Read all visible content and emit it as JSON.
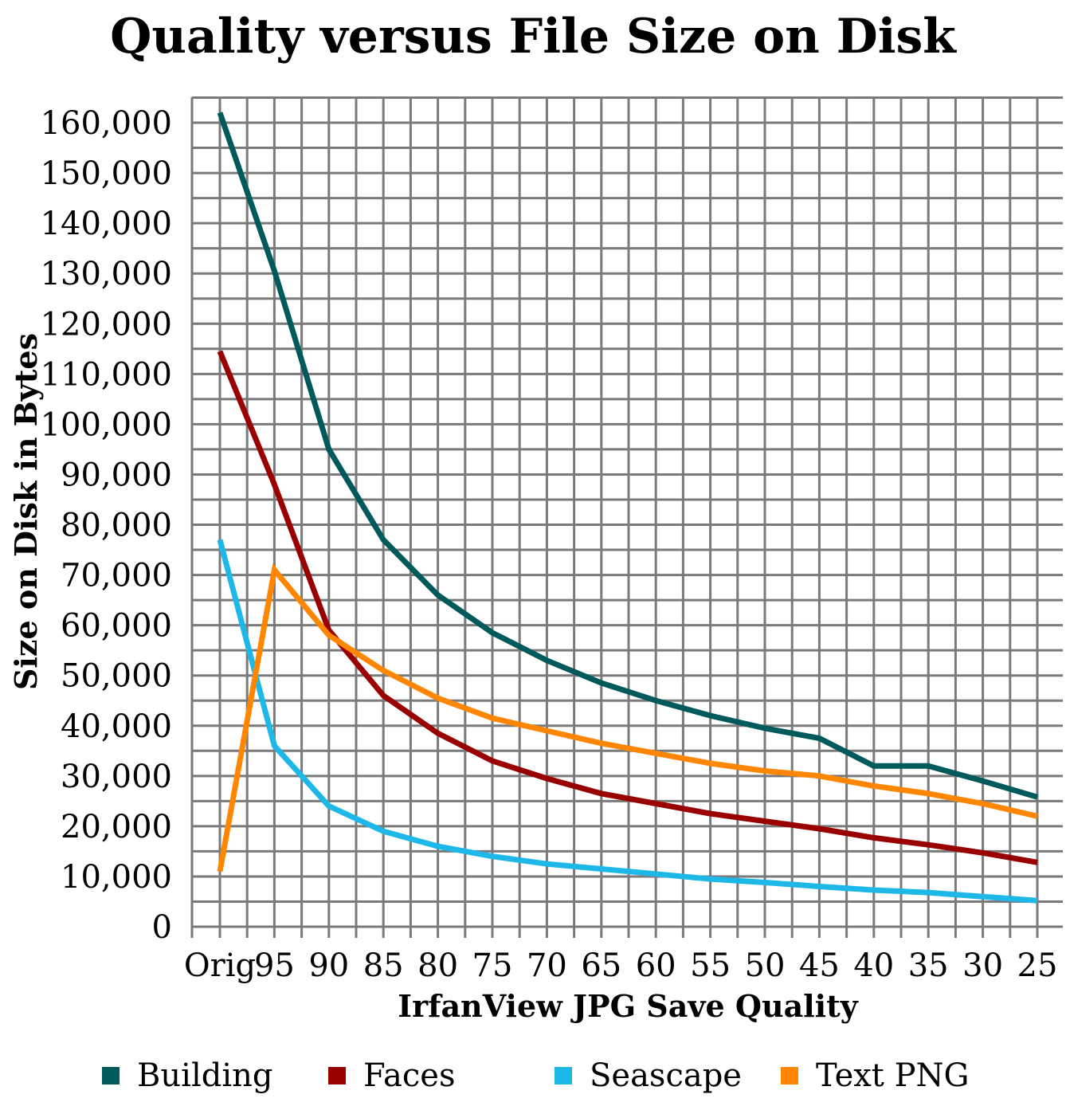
{
  "chart_data": {
    "type": "line",
    "title": "Quality versus File Size on Disk",
    "xlabel": "IrfanView JPG Save Quality",
    "ylabel": "Size on Disk in Bytes",
    "categories": [
      "Orig",
      "95",
      "90",
      "85",
      "80",
      "75",
      "70",
      "65",
      "60",
      "55",
      "50",
      "45",
      "40",
      "35",
      "30",
      "25"
    ],
    "ylim": [
      0,
      160000
    ],
    "yticks": [
      0,
      10000,
      20000,
      30000,
      40000,
      50000,
      60000,
      70000,
      80000,
      90000,
      100000,
      110000,
      120000,
      130000,
      140000,
      150000,
      160000
    ],
    "ytick_labels": [
      "0",
      "10,000",
      "20,000",
      "30,000",
      "40,000",
      "50,000",
      "60,000",
      "70,000",
      "80,000",
      "90,000",
      "100,000",
      "110,000",
      "120,000",
      "130,000",
      "140,000",
      "150,000",
      "160,000"
    ],
    "grid": true,
    "legend_position": "bottom",
    "series": [
      {
        "name": "Building",
        "color": "#005A5B",
        "values": [
          162000,
          130500,
          95000,
          77000,
          66000,
          58500,
          53000,
          48500,
          45000,
          42000,
          39500,
          37500,
          32000,
          32000,
          29000,
          25800
        ]
      },
      {
        "name": "Faces",
        "color": "#990000",
        "values": [
          114500,
          88000,
          59000,
          46000,
          38500,
          33000,
          29500,
          26500,
          24500,
          22500,
          21000,
          19500,
          17700,
          16300,
          14700,
          12800
        ]
      },
      {
        "name": "Seascape",
        "color": "#1EB8E8",
        "values": [
          77000,
          36000,
          24000,
          19000,
          16000,
          14000,
          12500,
          11500,
          10500,
          9500,
          8800,
          8000,
          7300,
          6800,
          6000,
          5200
        ]
      },
      {
        "name": "Text PNG",
        "color": "#FF8600",
        "values": [
          11000,
          71000,
          58000,
          51000,
          45500,
          41500,
          39000,
          36500,
          34500,
          32500,
          31000,
          30000,
          28000,
          26500,
          24500,
          22000
        ]
      }
    ]
  }
}
